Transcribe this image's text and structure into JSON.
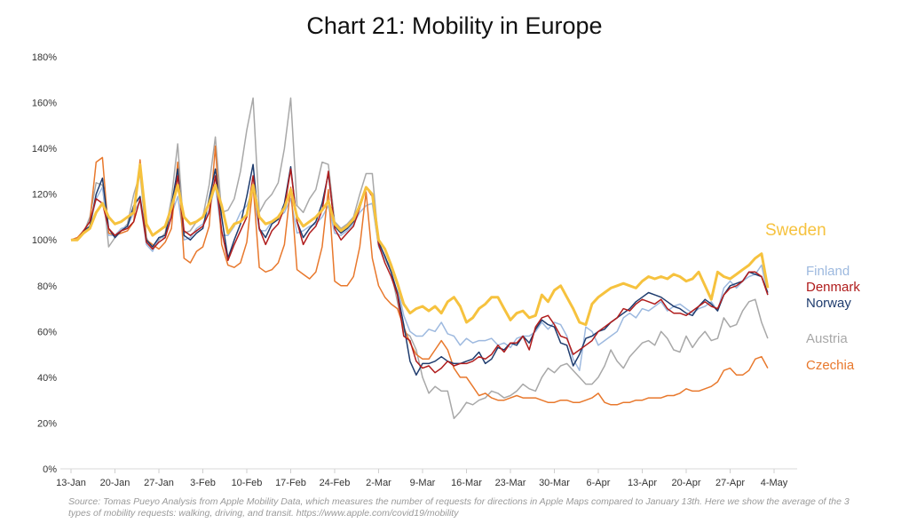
{
  "chart_data": {
    "type": "line",
    "title": "Chart 21: Mobility in Europe",
    "xlabel": "",
    "ylabel": "",
    "ylim": [
      0,
      180
    ],
    "y_ticks": [
      "0%",
      "20%",
      "40%",
      "60%",
      "80%",
      "100%",
      "120%",
      "140%",
      "160%",
      "180%"
    ],
    "x_ticks": [
      "13-Jan",
      "20-Jan",
      "27-Jan",
      "3-Feb",
      "10-Feb",
      "17-Feb",
      "24-Feb",
      "2-Mar",
      "9-Mar",
      "16-Mar",
      "23-Mar",
      "30-Mar",
      "6-Apr",
      "13-Apr",
      "20-Apr",
      "27-Apr",
      "4-May"
    ],
    "x_start": "13-Jan",
    "x_end": "11-May",
    "grid": false,
    "legend": "direct labels at line ends",
    "note": "Source: Tomas Pueyo Analysis from Apple Mobility Data, which measures the number of requests for directions in Apple Maps compared to January 13th. Here we show the average of the 3 types of mobility requests: walking, driving, and transit. https://www.apple.com/covid19/mobility",
    "series": [
      {
        "name": "Austria",
        "color": "#a8a8a8",
        "values": [
          100,
          101,
          103,
          110,
          125,
          124,
          97,
          101,
          104,
          107,
          120,
          129,
          101,
          96,
          100,
          103,
          118,
          142,
          103,
          104,
          108,
          110,
          124,
          145,
          112,
          113,
          118,
          130,
          148,
          162,
          112,
          117,
          120,
          125,
          140,
          162,
          115,
          112,
          118,
          122,
          134,
          133,
          108,
          105,
          107,
          110,
          120,
          129,
          129,
          99,
          92,
          86,
          73,
          60,
          58,
          52,
          40,
          33,
          36,
          34,
          34,
          22,
          25,
          29,
          28,
          30,
          31,
          34,
          33,
          31,
          32,
          34,
          37,
          35,
          34,
          40,
          44,
          42,
          45,
          46,
          43,
          40,
          37,
          37,
          40,
          45,
          52,
          47,
          44,
          49,
          52,
          55,
          56,
          54,
          60,
          57,
          52,
          51,
          58,
          53,
          57,
          60,
          56,
          57,
          66,
          62,
          63,
          69,
          73,
          74,
          64,
          57
        ]
      },
      {
        "name": "Finland",
        "color": "#9db9df",
        "values": [
          100,
          100,
          104,
          106,
          118,
          123,
          102,
          102,
          105,
          106,
          112,
          117,
          98,
          95,
          101,
          101,
          111,
          119,
          100,
          101,
          105,
          107,
          113,
          124,
          102,
          102,
          106,
          112,
          115,
          122,
          104,
          104,
          108,
          110,
          112,
          118,
          103,
          104,
          106,
          107,
          110,
          115,
          103,
          102,
          104,
          107,
          112,
          115,
          116,
          97,
          92,
          88,
          80,
          67,
          60,
          58,
          58,
          61,
          60,
          64,
          59,
          58,
          54,
          57,
          55,
          56,
          56,
          57,
          54,
          55,
          53,
          57,
          58,
          58,
          60,
          64,
          61,
          64,
          63,
          58,
          48,
          43,
          62,
          60,
          54,
          56,
          58,
          60,
          66,
          68,
          66,
          70,
          69,
          71,
          73,
          69,
          71,
          72,
          70,
          68,
          70,
          71,
          73,
          69,
          79,
          82,
          79,
          82,
          84,
          85,
          89,
          76
        ]
      },
      {
        "name": "Czechia",
        "color": "#e8782c",
        "values": [
          100,
          101,
          104,
          108,
          134,
          136,
          103,
          102,
          103,
          104,
          108,
          135,
          100,
          98,
          96,
          99,
          105,
          134,
          92,
          90,
          95,
          97,
          106,
          141,
          98,
          89,
          88,
          90,
          99,
          124,
          88,
          86,
          87,
          90,
          98,
          123,
          87,
          85,
          83,
          86,
          97,
          122,
          82,
          80,
          80,
          84,
          97,
          121,
          92,
          80,
          75,
          72,
          70,
          62,
          55,
          50,
          48,
          48,
          52,
          56,
          52,
          44,
          40,
          40,
          36,
          32,
          33,
          31,
          30,
          30,
          31,
          32,
          31,
          31,
          31,
          30,
          29,
          29,
          30,
          30,
          29,
          29,
          30,
          31,
          33,
          29,
          28,
          28,
          29,
          29,
          30,
          30,
          31,
          31,
          31,
          32,
          32,
          33,
          35,
          34,
          34,
          35,
          36,
          38,
          43,
          44,
          41,
          41,
          43,
          48,
          49,
          44
        ]
      },
      {
        "name": "Norway",
        "color": "#1f3c6e",
        "values": [
          100,
          100,
          104,
          106,
          120,
          127,
          105,
          101,
          104,
          106,
          115,
          119,
          100,
          97,
          101,
          102,
          115,
          131,
          102,
          100,
          103,
          105,
          118,
          131,
          110,
          92,
          100,
          107,
          119,
          133,
          105,
          101,
          107,
          109,
          116,
          132,
          108,
          101,
          105,
          108,
          116,
          129,
          106,
          103,
          105,
          108,
          116,
          123,
          120,
          99,
          93,
          86,
          77,
          63,
          47,
          41,
          46,
          46,
          47,
          49,
          47,
          46,
          46,
          47,
          48,
          51,
          46,
          48,
          53,
          52,
          55,
          54,
          58,
          55,
          61,
          65,
          63,
          62,
          55,
          54,
          45,
          50,
          57,
          58,
          60,
          61,
          64,
          66,
          68,
          70,
          73,
          75,
          77,
          76,
          75,
          73,
          71,
          70,
          68,
          67,
          71,
          74,
          72,
          69,
          76,
          80,
          81,
          82,
          86,
          85,
          84,
          77
        ]
      },
      {
        "name": "Denmark",
        "color": "#b01c1c",
        "values": [
          100,
          100,
          104,
          108,
          118,
          116,
          105,
          102,
          104,
          105,
          108,
          118,
          99,
          96,
          99,
          101,
          110,
          128,
          104,
          102,
          104,
          106,
          112,
          128,
          104,
          91,
          98,
          104,
          110,
          128,
          105,
          98,
          104,
          107,
          114,
          131,
          108,
          98,
          103,
          106,
          113,
          130,
          105,
          100,
          103,
          106,
          114,
          123,
          119,
          98,
          90,
          84,
          76,
          58,
          56,
          47,
          44,
          45,
          42,
          44,
          47,
          45,
          46,
          46,
          47,
          49,
          48,
          50,
          54,
          51,
          55,
          55,
          58,
          52,
          62,
          66,
          67,
          63,
          58,
          57,
          50,
          52,
          54,
          56,
          60,
          62,
          64,
          66,
          70,
          69,
          72,
          74,
          73,
          72,
          74,
          70,
          68,
          68,
          67,
          69,
          71,
          73,
          71,
          70,
          76,
          79,
          80,
          82,
          86,
          86,
          84,
          76
        ]
      },
      {
        "name": "Sweden",
        "color": "#f6c23e",
        "values": [
          100,
          100,
          103,
          105,
          112,
          116,
          110,
          107,
          108,
          110,
          112,
          133,
          107,
          102,
          104,
          106,
          114,
          124,
          110,
          107,
          108,
          110,
          116,
          124,
          115,
          103,
          107,
          108,
          111,
          124,
          110,
          107,
          108,
          110,
          114,
          122,
          110,
          106,
          108,
          110,
          113,
          117,
          107,
          104,
          106,
          109,
          115,
          123,
          120,
          100,
          96,
          89,
          81,
          72,
          68,
          70,
          71,
          69,
          71,
          68,
          73,
          75,
          71,
          64,
          66,
          70,
          72,
          75,
          75,
          70,
          65,
          68,
          69,
          66,
          67,
          76,
          73,
          78,
          80,
          75,
          70,
          64,
          63,
          72,
          75,
          77,
          79,
          80,
          81,
          80,
          79,
          82,
          84,
          83,
          84,
          83,
          85,
          84,
          82,
          83,
          86,
          80,
          74,
          86,
          84,
          83,
          85,
          87,
          89,
          92,
          94,
          79
        ]
      }
    ]
  },
  "series_label_order": [
    "Sweden",
    "Finland",
    "Denmark",
    "Norway",
    "Austria",
    "Czechia"
  ]
}
